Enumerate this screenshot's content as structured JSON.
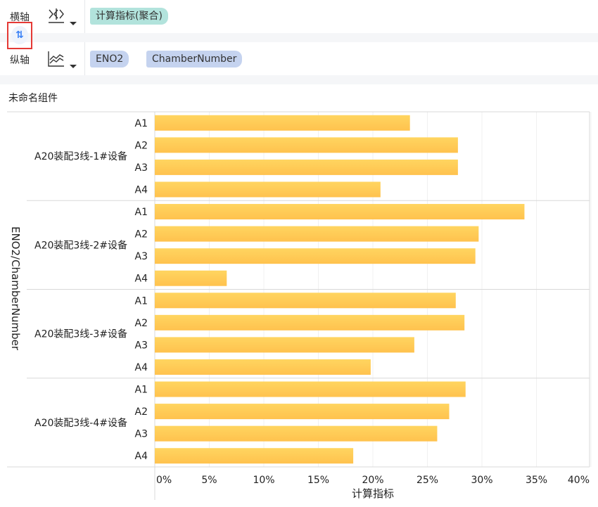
{
  "toolbar": {
    "x_axis_label": "横轴",
    "y_axis_label": "纵轴",
    "x_fields": [
      "计算指标(聚合)"
    ],
    "y_fields": [
      "ENO2",
      "ChamberNumber"
    ],
    "x_icon": "bar-chart-type-icon",
    "y_icon": "line-area-chart-type-icon",
    "swap_icon": "swap-axes-icon",
    "x_pill_color": "#b2e3dc",
    "y_pill_color": "#c5d3ef"
  },
  "widget": {
    "title": "未命名组件"
  },
  "chart_data": {
    "type": "bar",
    "orientation": "horizontal",
    "xlabel": "计算指标",
    "ylabel": "ENO2/ChamberNumber",
    "xlim": [
      0,
      40
    ],
    "x_ticks": [
      "0%",
      "5%",
      "10%",
      "15%",
      "20%",
      "25%",
      "30%",
      "35%",
      "40%"
    ],
    "grid": true,
    "bar_color": "#ffc84f",
    "groups": [
      {
        "name": "A20装配3线-1#设备",
        "categories": [
          "A1",
          "A2",
          "A3",
          "A4"
        ],
        "values": [
          23.4,
          27.8,
          27.8,
          20.7
        ]
      },
      {
        "name": "A20装配3线-2#设备",
        "categories": [
          "A1",
          "A2",
          "A3",
          "A4"
        ],
        "values": [
          33.9,
          29.7,
          29.4,
          6.6
        ]
      },
      {
        "name": "A20装配3线-3#设备",
        "categories": [
          "A1",
          "A2",
          "A3",
          "A4"
        ],
        "values": [
          27.6,
          28.4,
          23.8,
          19.8
        ]
      },
      {
        "name": "A20装配3线-4#设备",
        "categories": [
          "A1",
          "A2",
          "A3",
          "A4"
        ],
        "values": [
          28.5,
          27.0,
          25.9,
          18.2
        ]
      }
    ]
  }
}
